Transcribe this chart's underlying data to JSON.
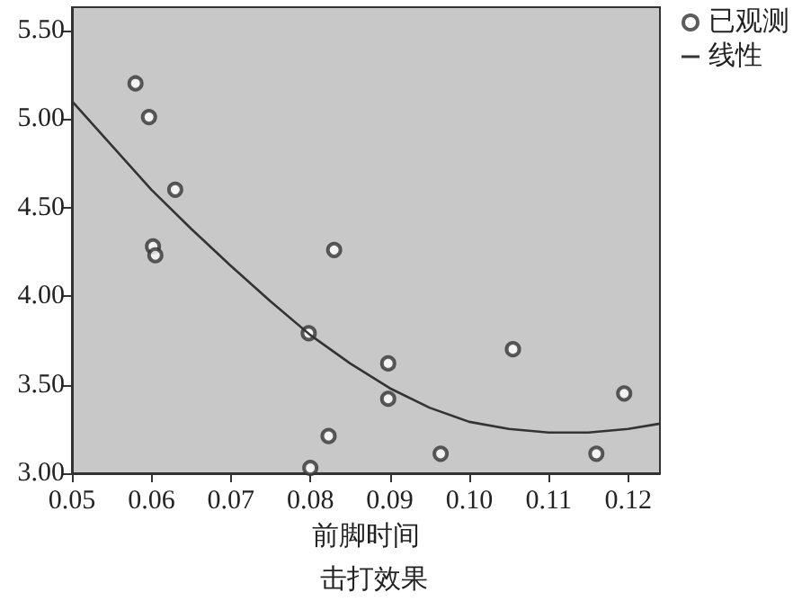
{
  "chart_data": {
    "type": "scatter",
    "title": "击打效果",
    "xlabel": "前脚时间",
    "xlim": [
      0.05,
      0.124
    ],
    "xticks": [
      0.05,
      0.06,
      0.07,
      0.08,
      0.09,
      {
        "value": 0.1,
        "label": "0.10"
      },
      0.11,
      0.12
    ],
    "ylim": [
      3,
      5.63
    ],
    "yticks": [
      {
        "value": 3,
        "label": "3.00"
      },
      {
        "value": 3.5,
        "label": "3.50"
      },
      {
        "value": 4,
        "label": "4.00"
      },
      {
        "value": 4.5,
        "label": "4.50"
      },
      {
        "value": 5,
        "label": "5.00"
      },
      {
        "value": 5.5,
        "label": "5.50"
      }
    ],
    "grid": false,
    "legend": "top right",
    "marker": "circle",
    "series": [
      {
        "name": "已观测",
        "type": "scatter",
        "color": "#333333",
        "x": [
          0.058,
          0.0597,
          0.063,
          0.0602,
          0.0605,
          0.083,
          0.0798,
          0.0898,
          0.0898,
          0.0823,
          0.08,
          0.0964,
          0.1055,
          0.116,
          0.1195
        ],
        "values": [
          5.2,
          5.01,
          4.6,
          4.28,
          4.23,
          4.26,
          3.79,
          3.62,
          3.42,
          3.21,
          3.03,
          3.11,
          3.7,
          3.11,
          3.45
        ]
      },
      {
        "name": "线性",
        "type": "line",
        "color": "#333333",
        "marker": "none",
        "x": [
          0.05,
          0.055,
          0.06,
          0.065,
          0.07,
          0.075,
          0.08,
          0.085,
          0.09,
          0.095,
          0.1,
          0.105,
          0.11,
          0.115,
          0.12,
          0.124
        ],
        "values": [
          5.1,
          4.85,
          4.6,
          4.38,
          4.17,
          3.97,
          3.78,
          3.62,
          3.48,
          3.37,
          3.29,
          3.25,
          3.23,
          3.23,
          3.25,
          3.28
        ]
      }
    ]
  }
}
